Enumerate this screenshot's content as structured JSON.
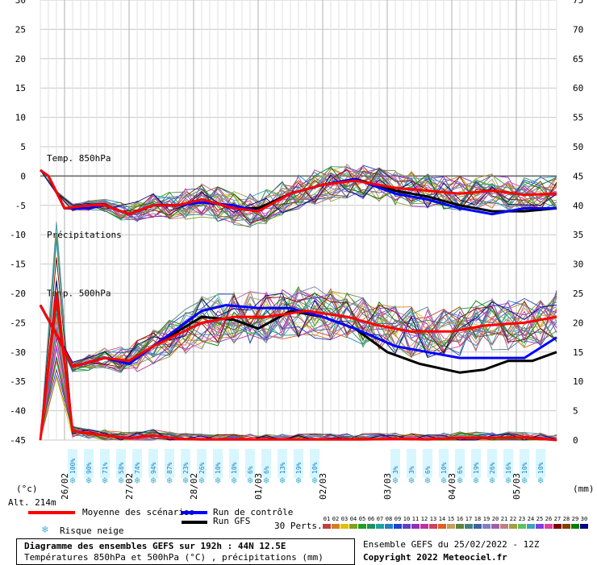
{
  "chart_data": {
    "type": "line",
    "y_left_label": "(°c)",
    "y_right_label": "(mm)",
    "y_left_ticks": [
      30,
      25,
      20,
      15,
      10,
      5,
      0,
      -5,
      -10,
      -15,
      -20,
      -25,
      -30,
      -35,
      -40,
      -45
    ],
    "y_right_ticks": [
      75,
      70,
      65,
      60,
      55,
      50,
      45,
      40,
      35,
      30,
      25,
      20,
      15,
      10,
      5,
      0
    ],
    "ylim_left": [
      -45,
      30
    ],
    "ylim_right": [
      0,
      75
    ],
    "x_dates": [
      "26/02",
      "27/02",
      "28/02",
      "01/03",
      "02/03",
      "03/03",
      "04/03",
      "05/03"
    ],
    "section_labels": {
      "t850": "Temp. 850hPa",
      "precip": "Précipitations",
      "t500": "Temp. 500hPa"
    },
    "grid": true,
    "t850_mean": [
      [
        0,
        1
      ],
      [
        1,
        0
      ],
      [
        3,
        -5.5
      ],
      [
        6,
        -5
      ],
      [
        8,
        -5
      ],
      [
        11,
        -6.5
      ],
      [
        14,
        -5
      ],
      [
        17,
        -5
      ],
      [
        20,
        -4
      ],
      [
        24,
        -5.5
      ],
      [
        27,
        -6
      ],
      [
        31,
        -3
      ],
      [
        35,
        -1.5
      ],
      [
        39,
        -0.8
      ],
      [
        44,
        -2
      ],
      [
        48,
        -2.5
      ],
      [
        52,
        -3
      ],
      [
        56,
        -2.5
      ],
      [
        60,
        -3.2
      ],
      [
        64,
        -3
      ]
    ],
    "t850_control": [
      [
        0,
        1
      ],
      [
        1,
        0
      ],
      [
        3,
        -5.5
      ],
      [
        6,
        -5.5
      ],
      [
        8,
        -5
      ],
      [
        11,
        -6.5
      ],
      [
        14,
        -5
      ],
      [
        17,
        -5
      ],
      [
        20,
        -4.5
      ],
      [
        24,
        -5
      ],
      [
        27,
        -6
      ],
      [
        31,
        -3
      ],
      [
        35,
        -1.5
      ],
      [
        39,
        -0.5
      ],
      [
        44,
        -3
      ],
      [
        48,
        -4
      ],
      [
        52,
        -5.5
      ],
      [
        56,
        -6.5
      ],
      [
        60,
        -5.5
      ],
      [
        64,
        -5.5
      ]
    ],
    "t850_gfs": [
      [
        0,
        1
      ],
      [
        1,
        0
      ],
      [
        3,
        -5.5
      ],
      [
        6,
        -5.5
      ],
      [
        8,
        -5
      ],
      [
        11,
        -6.5
      ],
      [
        14,
        -5
      ],
      [
        17,
        -5
      ],
      [
        20,
        -4
      ],
      [
        24,
        -5.5
      ],
      [
        27,
        -5.5
      ],
      [
        31,
        -3
      ],
      [
        35,
        -1.5
      ],
      [
        39,
        -0.5
      ],
      [
        44,
        -2.5
      ],
      [
        48,
        -3.5
      ],
      [
        52,
        -5
      ],
      [
        56,
        -6
      ],
      [
        60,
        -6
      ],
      [
        64,
        -5.5
      ]
    ],
    "t500_mean": [
      [
        0,
        -22
      ],
      [
        2,
        -27
      ],
      [
        4,
        -32.5
      ],
      [
        8,
        -31
      ],
      [
        11,
        -31.5
      ],
      [
        14,
        -29
      ],
      [
        17,
        -27
      ],
      [
        20,
        -25
      ],
      [
        24,
        -24
      ],
      [
        28,
        -24
      ],
      [
        33,
        -23
      ],
      [
        38,
        -24
      ],
      [
        42,
        -25.5
      ],
      [
        46,
        -26.5
      ],
      [
        51,
        -26.5
      ],
      [
        55,
        -25.5
      ],
      [
        60,
        -25
      ],
      [
        64,
        -24
      ]
    ],
    "t500_control": [
      [
        0,
        -22
      ],
      [
        2,
        -27
      ],
      [
        4,
        -32.5
      ],
      [
        8,
        -31
      ],
      [
        11,
        -32
      ],
      [
        14,
        -29
      ],
      [
        17,
        -26
      ],
      [
        20,
        -23
      ],
      [
        23,
        -22
      ],
      [
        27,
        -22.5
      ],
      [
        31,
        -22.5
      ],
      [
        35,
        -24
      ],
      [
        39,
        -26
      ],
      [
        44,
        -29
      ],
      [
        48,
        -30
      ],
      [
        52,
        -31
      ],
      [
        56,
        -31
      ],
      [
        60,
        -31
      ],
      [
        64,
        -27.5
      ]
    ],
    "t500_gfs": [
      [
        0,
        -22
      ],
      [
        2,
        -27
      ],
      [
        4,
        -32.5
      ],
      [
        8,
        -31
      ],
      [
        11,
        -32
      ],
      [
        14,
        -29
      ],
      [
        17,
        -26.5
      ],
      [
        20,
        -24
      ],
      [
        24,
        -24.5
      ],
      [
        27,
        -26
      ],
      [
        31,
        -23
      ],
      [
        35,
        -24
      ],
      [
        39,
        -26
      ],
      [
        43,
        -30
      ],
      [
        47,
        -32
      ],
      [
        52,
        -33.5
      ],
      [
        55,
        -33
      ],
      [
        58,
        -31.5
      ],
      [
        61,
        -31.5
      ],
      [
        64,
        -30
      ]
    ],
    "precip_mean": [
      [
        0,
        0
      ],
      [
        2,
        25
      ],
      [
        4,
        1.5
      ],
      [
        8,
        0.8
      ],
      [
        11,
        0.3
      ],
      [
        14,
        0.8
      ],
      [
        17,
        0.2
      ],
      [
        20,
        0.1
      ],
      [
        28,
        0.1
      ],
      [
        36,
        0.1
      ],
      [
        40,
        0.1
      ],
      [
        44,
        0.2
      ],
      [
        48,
        0.1
      ],
      [
        52,
        0.4
      ],
      [
        56,
        0.4
      ],
      [
        60,
        0.4
      ],
      [
        64,
        0
      ]
    ],
    "snow_risk": [
      {
        "pct": "100%",
        "pos": 4
      },
      {
        "pct": "90%",
        "pos": 6
      },
      {
        "pct": "71%",
        "pos": 8
      },
      {
        "pct": "58%",
        "pos": 10
      },
      {
        "pct": "74%",
        "pos": 12
      },
      {
        "pct": "94%",
        "pos": 14
      },
      {
        "pct": "87%",
        "pos": 16
      },
      {
        "pct": "23%",
        "pos": 18
      },
      {
        "pct": "26%",
        "pos": 20
      },
      {
        "pct": "10%",
        "pos": 22
      },
      {
        "pct": "10%",
        "pos": 24
      },
      {
        "pct": "6%",
        "pos": 26
      },
      {
        "pct": "6%",
        "pos": 28
      },
      {
        "pct": "13%",
        "pos": 30
      },
      {
        "pct": "19%",
        "pos": 32
      },
      {
        "pct": "10%",
        "pos": 34
      },
      {
        "pct": "3%",
        "pos": 44
      },
      {
        "pct": "3%",
        "pos": 46
      },
      {
        "pct": "6%",
        "pos": 48
      },
      {
        "pct": "10%",
        "pos": 50
      },
      {
        "pct": "6%",
        "pos": 52
      },
      {
        "pct": "19%",
        "pos": 54
      },
      {
        "pct": "26%",
        "pos": 56
      },
      {
        "pct": "16%",
        "pos": 58
      },
      {
        "pct": "10%",
        "pos": 60
      },
      {
        "pct": "10%",
        "pos": 62
      }
    ],
    "member_colors": [
      "#c04040",
      "#d08020",
      "#e0c000",
      "#80a020",
      "#20a020",
      "#209060",
      "#20a0a0",
      "#2080c0",
      "#2040d0",
      "#6040c0",
      "#9030b0",
      "#c030a0",
      "#d04060",
      "#e06020",
      "#c0a060",
      "#608040",
      "#408080",
      "#4060a0",
      "#8080c0",
      "#a060a0",
      "#c08080",
      "#a0a040",
      "#60c060",
      "#40a0c0",
      "#8040e0",
      "#e040a0",
      "#800000",
      "#804000",
      "#008000",
      "#000080"
    ]
  },
  "alt_label": "Alt. 214m",
  "legend": {
    "mean": "Moyenne des scénarios",
    "control": "Run de contrôle",
    "gfs": "Run GFS",
    "snow": "Risque neige",
    "perts": "30 Perts.",
    "pert_numbers": [
      "01",
      "02",
      "03",
      "04",
      "05",
      "06",
      "07",
      "08",
      "09",
      "10",
      "11",
      "12",
      "13",
      "14",
      "15",
      "16",
      "17",
      "18",
      "19",
      "20",
      "21",
      "22",
      "23",
      "24",
      "25",
      "26",
      "27",
      "28",
      "29",
      "30"
    ]
  },
  "footer": {
    "title": "Diagramme des ensembles GEFS sur 192h : 44N 12.5E",
    "subtitle": "Températures 850hPa et 500hPa (°C) , précipitations (mm)",
    "run": "Ensemble GEFS du 25/02/2022 - 12Z",
    "copyright": "Copyright 2022 Meteociel.fr"
  },
  "colors": {
    "mean": "#ff0000",
    "control": "#0000ff",
    "gfs": "#000000",
    "grid": "#c8c8c8",
    "snow_bg": "#d8f6ff"
  }
}
